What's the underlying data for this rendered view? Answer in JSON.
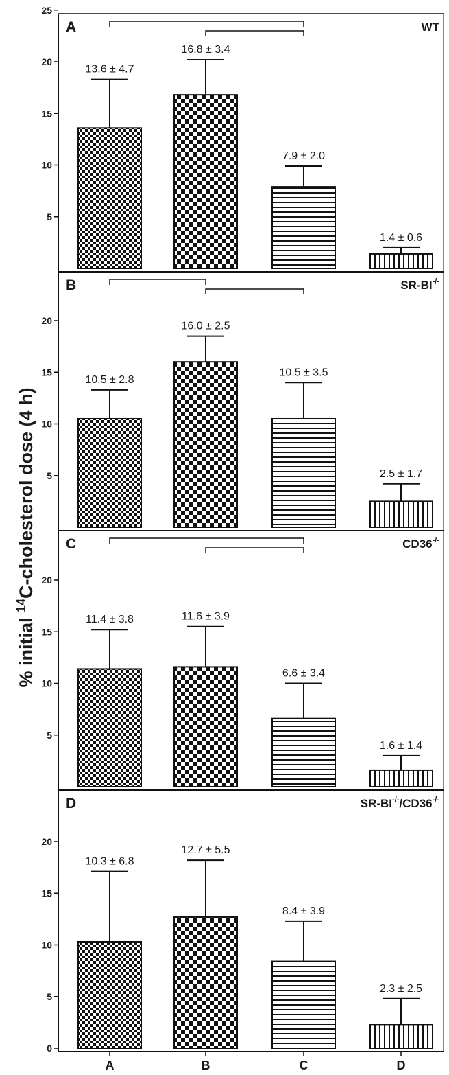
{
  "figure": {
    "ylabel_prefix": "% initial ",
    "ylabel_sup": "14",
    "ylabel_suffix": "C-cholesterol dose (4 h)"
  },
  "chart_data": {
    "type": "bar",
    "categories": [
      "A",
      "B",
      "C",
      "D"
    ],
    "category_patterns": [
      "fine-checker",
      "coarse-checker",
      "horizontal-stripes",
      "vertical-stripes"
    ],
    "ylabel": "% initial 14C-cholesterol dose (4 h)",
    "ylim": [
      0,
      25
    ],
    "panels": [
      {
        "letter": "A",
        "genotype": "WT",
        "genotype_sup": "",
        "values": [
          13.6,
          16.8,
          7.9,
          1.4
        ],
        "errors": [
          4.7,
          3.4,
          2.0,
          0.6
        ],
        "labels": [
          "13.6 ± 4.7",
          "16.8 ± 3.4",
          "7.9 ± 2.0",
          "1.4 ± 0.6"
        ],
        "yticks": [
          "25",
          "20",
          "15",
          "10",
          "5"
        ],
        "ytick_values": [
          25,
          20,
          15,
          10,
          5
        ],
        "brackets": [
          {
            "from": 0,
            "to": 2
          },
          {
            "from": 1,
            "to": 2
          }
        ]
      },
      {
        "letter": "B",
        "genotype": "SR-BI",
        "genotype_sup": "-/-",
        "values": [
          10.5,
          16.0,
          10.5,
          2.5
        ],
        "errors": [
          2.8,
          2.5,
          3.5,
          1.7
        ],
        "labels": [
          "10.5 ± 2.8",
          "16.0 ± 2.5",
          "10.5 ± 3.5",
          "2.5 ± 1.7"
        ],
        "yticks": [
          "20",
          "15",
          "10",
          "5"
        ],
        "ytick_values": [
          20,
          15,
          10,
          5
        ],
        "brackets": [
          {
            "from": 0,
            "to": 1
          },
          {
            "from": 1,
            "to": 2
          }
        ]
      },
      {
        "letter": "C",
        "genotype": "CD36",
        "genotype_sup": "-/-",
        "values": [
          11.4,
          11.6,
          6.6,
          1.6
        ],
        "errors": [
          3.8,
          3.9,
          3.4,
          1.4
        ],
        "labels": [
          "11.4 ± 3.8",
          "11.6 ± 3.9",
          "6.6 ± 3.4",
          "1.6 ± 1.4"
        ],
        "yticks": [
          "20",
          "15",
          "10",
          "5"
        ],
        "ytick_values": [
          20,
          15,
          10,
          5
        ],
        "brackets": [
          {
            "from": 0,
            "to": 2
          },
          {
            "from": 1,
            "to": 2
          }
        ]
      },
      {
        "letter": "D",
        "genotype": "SR-BI",
        "genotype_sup": "-/-",
        "genotype_tail": "/CD36",
        "genotype_tail_sup": "-/-",
        "values": [
          10.3,
          12.7,
          8.4,
          2.3
        ],
        "errors": [
          6.8,
          5.5,
          3.9,
          2.5
        ],
        "labels": [
          "10.3 ± 6.8",
          "12.7 ± 5.5",
          "8.4 ± 3.9",
          "2.3 ± 2.5"
        ],
        "yticks": [
          "20",
          "15",
          "10",
          "5",
          "0"
        ],
        "ytick_values": [
          20,
          15,
          10,
          5,
          0
        ],
        "brackets": []
      }
    ]
  }
}
